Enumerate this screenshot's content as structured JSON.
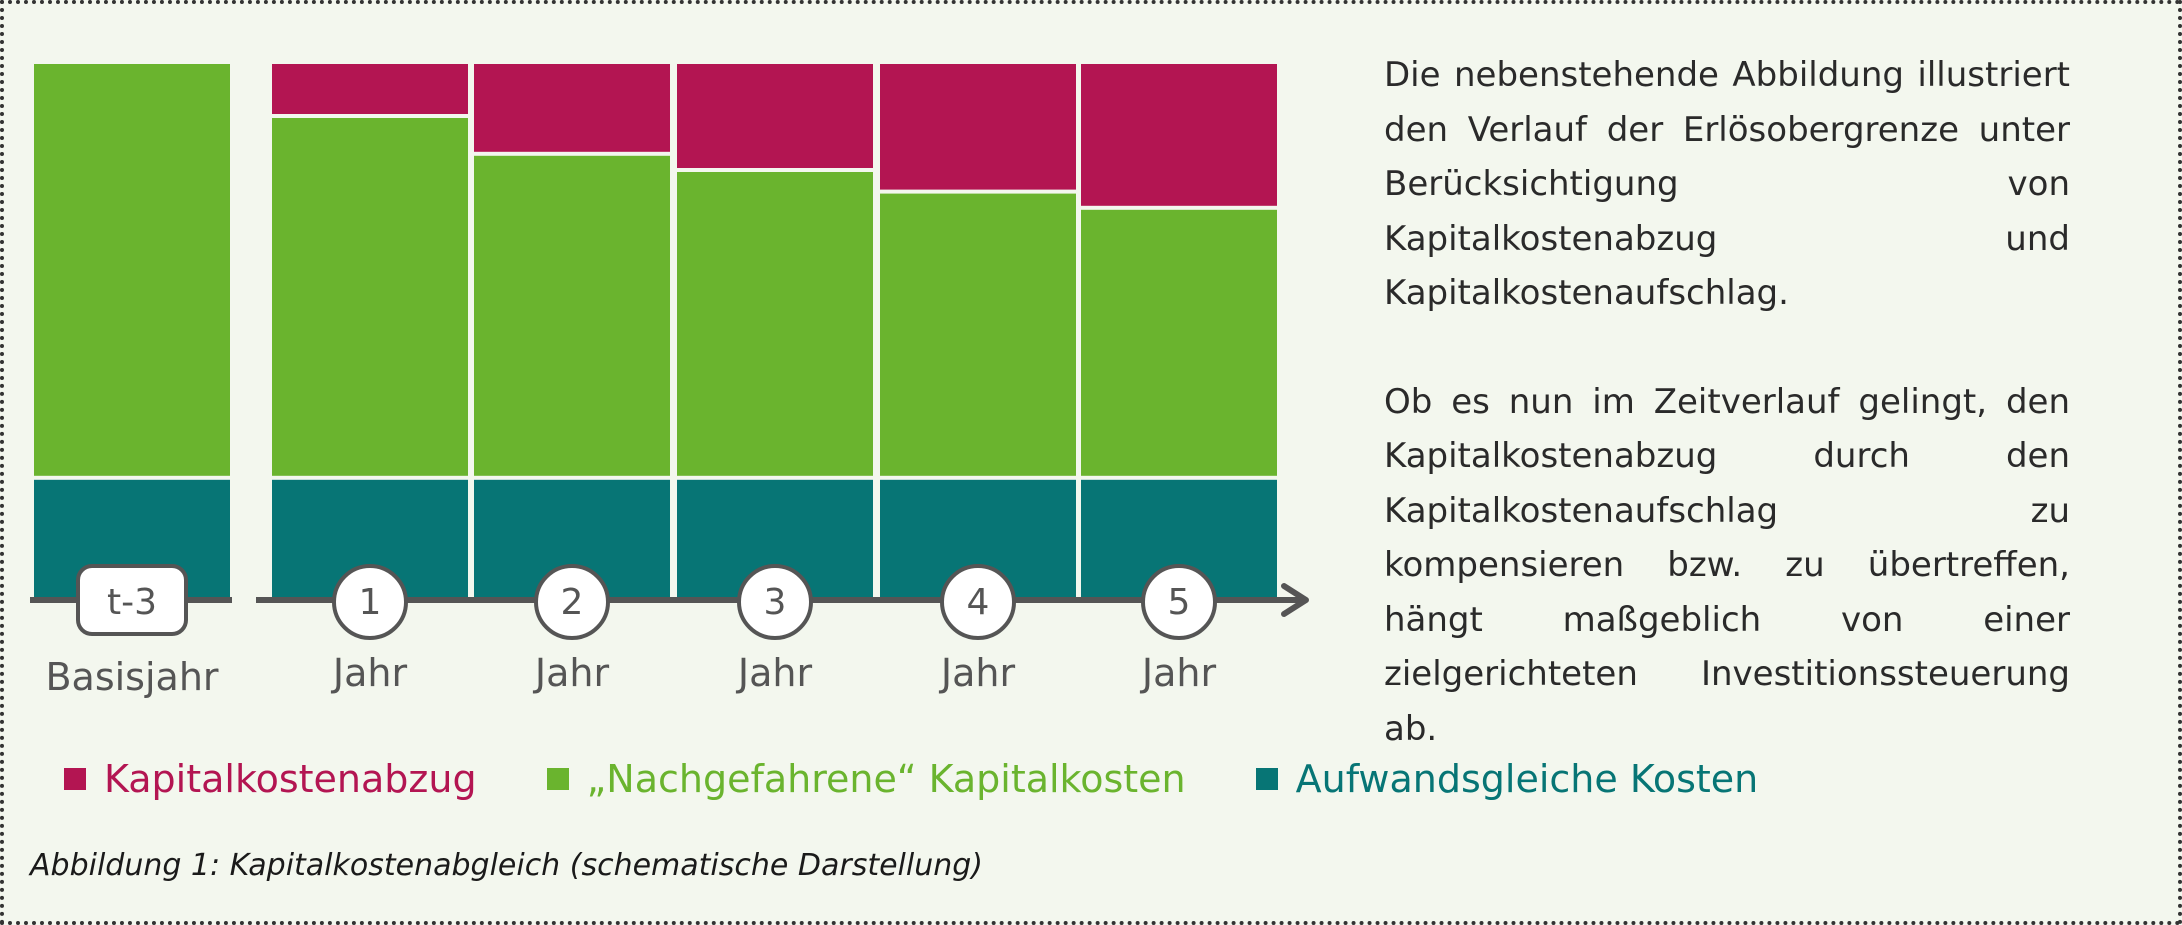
{
  "chart_data": {
    "type": "bar",
    "stacked": true,
    "categories": [
      "t-3",
      "1",
      "2",
      "3",
      "4",
      "5"
    ],
    "category_sublabels": [
      "Basisjahr",
      "Jahr",
      "Jahr",
      "Jahr",
      "Jahr",
      "Jahr"
    ],
    "series": [
      {
        "name": "Aufwandsgleiche Kosten",
        "color": "#077575",
        "values": [
          23,
          23,
          23,
          23,
          23,
          23
        ]
      },
      {
        "name": "„Nachgefahrene“ Kapitalkosten",
        "color": "#6ab42e",
        "values": [
          77,
          67,
          60,
          57,
          53,
          50
        ]
      },
      {
        "name": "Kapitalkostenabzug",
        "color": "#b31552",
        "values": [
          0,
          10,
          17,
          20,
          24,
          27
        ]
      }
    ],
    "ylim": [
      0,
      100
    ],
    "grid": false,
    "legend_placement": "bottom",
    "caption": "Abbildung 1: Kapitalkostenabgleich (schematische Darstellung)"
  },
  "description": {
    "paragraphs": [
      "Die nebenstehende Abbildung illustriert den Verlauf der Erlösobergrenze unter Berücksichtigung von Kapitalkostenabzug und Kapitalkostenaufschlag.",
      "Ob es nun im Zeitverlauf gelingt, den Kapitalkostenabzug durch den Kapitalkostenaufschlag zu kompensieren bzw. zu übertreffen, hängt maßgeblich von einer zielgerichteten Investitionssteuerung ab."
    ]
  },
  "colors": {
    "background": "#f3f7ee",
    "axis": "#555555",
    "label": "#555555",
    "text": "#2a2a2a"
  }
}
